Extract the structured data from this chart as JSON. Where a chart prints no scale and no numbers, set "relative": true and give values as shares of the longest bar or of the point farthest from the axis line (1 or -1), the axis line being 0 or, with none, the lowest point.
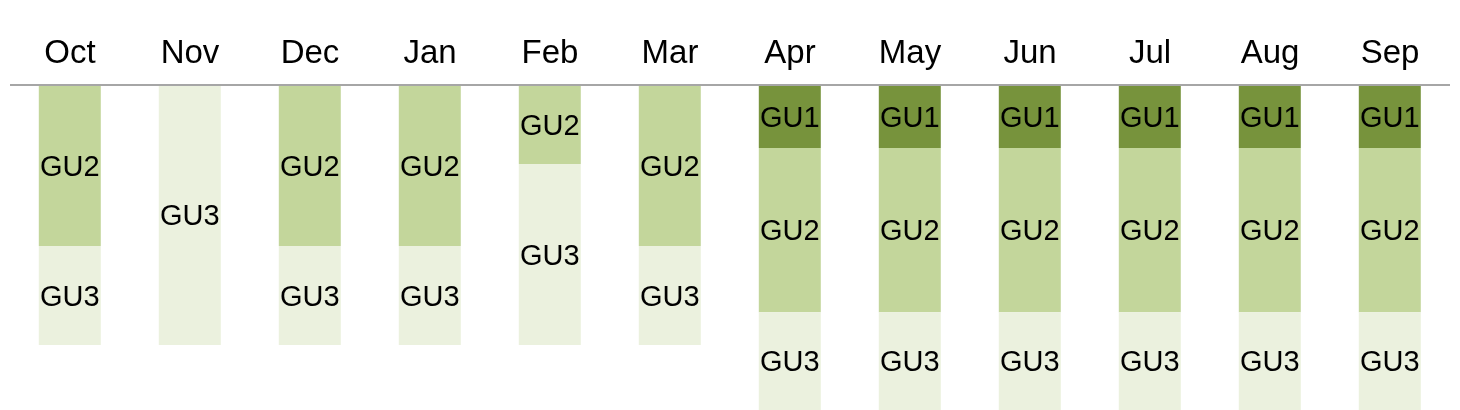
{
  "chart_data": {
    "type": "bar",
    "stacked": true,
    "relative": true,
    "categories": [
      "Oct",
      "Nov",
      "Dec",
      "Jan",
      "Feb",
      "Mar",
      "Apr",
      "May",
      "Jun",
      "Jul",
      "Aug",
      "Sep"
    ],
    "series": [
      {
        "name": "GU1",
        "color": "#77933c",
        "values": [
          null,
          null,
          null,
          null,
          null,
          null,
          -0.194,
          -0.194,
          -0.194,
          -0.194,
          -0.194,
          -0.194
        ]
      },
      {
        "name": "GU2",
        "color": "#c3d69b",
        "values": [
          -0.495,
          null,
          -0.495,
          -0.495,
          -0.243,
          -0.495,
          -0.505,
          -0.505,
          -0.505,
          -0.505,
          -0.505,
          -0.505
        ]
      },
      {
        "name": "GU3",
        "color": "#ebf1de",
        "values": [
          -0.305,
          -0.8,
          -0.305,
          -0.305,
          -0.557,
          -0.305,
          -0.301,
          -0.301,
          -0.301,
          -0.301,
          -0.301,
          -0.301
        ]
      }
    ]
  }
}
